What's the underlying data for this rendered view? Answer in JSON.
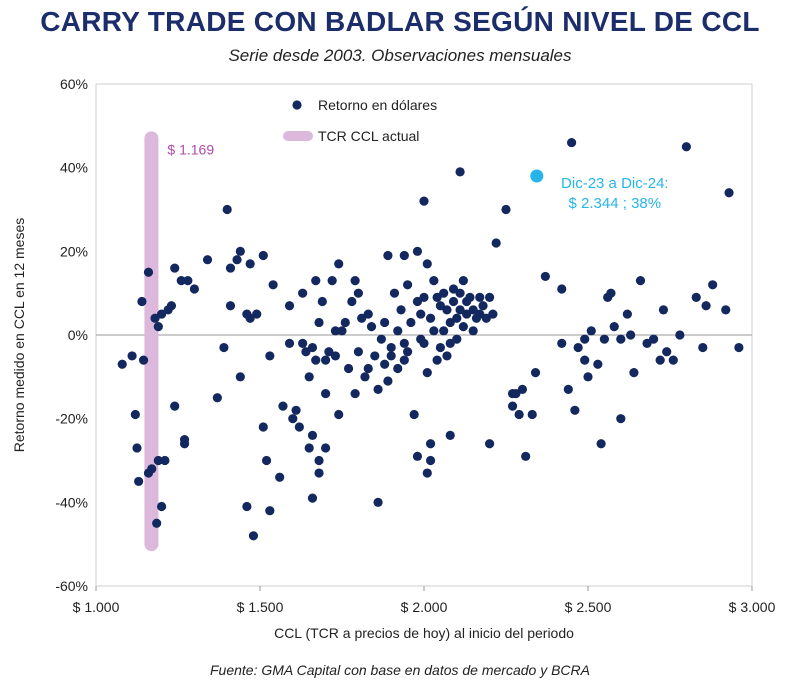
{
  "title": "CARRY TRADE CON BADLAR SEGÚN NIVEL DE CCL",
  "subtitle": "Serie desde 2003. Observaciones mensuales",
  "source": "Fuente: GMA Capital con base en datos de mercado y BCRA",
  "colors": {
    "points": "#13285e",
    "highlight": "#26b5ea",
    "band": "#dcb8dc",
    "band_label": "#b04aa8",
    "title": "#1c2d6b"
  },
  "chart_data": {
    "type": "scatter",
    "xlabel": "CCL (TCR a precios de hoy) al inicio del periodo",
    "ylabel": "Retorno medido en CCL en 12 meses",
    "xlim": [
      1000,
      3000
    ],
    "ylim": [
      -60,
      60
    ],
    "x_ticks": [
      {
        "value": 1000,
        "label": "$ 1.000"
      },
      {
        "value": 1500,
        "label": "$ 1.500"
      },
      {
        "value": 2000,
        "label": "$ 2.000"
      },
      {
        "value": 2500,
        "label": "$ 2.500"
      },
      {
        "value": 3000,
        "label": "$ 3.000"
      }
    ],
    "y_ticks": [
      {
        "value": 60,
        "label": "60%"
      },
      {
        "value": 40,
        "label": "40%"
      },
      {
        "value": 20,
        "label": "20%"
      },
      {
        "value": 0,
        "label": "0%"
      },
      {
        "value": -20,
        "label": "-20%"
      },
      {
        "value": -40,
        "label": "-40%"
      },
      {
        "value": -60,
        "label": "-60%"
      }
    ],
    "legend": [
      {
        "label": "Retorno en dólares",
        "kind": "point"
      },
      {
        "label": "TCR CCL actual",
        "kind": "band"
      }
    ],
    "current_ccl": {
      "value": 1169,
      "label": "$ 1.169",
      "y_range": [
        -50,
        47
      ]
    },
    "highlight": {
      "x": 2344,
      "y": 38,
      "label_line1": "Dic-23 a Dic-24:",
      "label_line2": "$ 2.344 ; 38%"
    },
    "series": [
      {
        "name": "Retorno en dólares",
        "points": [
          [
            1080,
            -7
          ],
          [
            1110,
            -5
          ],
          [
            1120,
            -19
          ],
          [
            1125,
            -27
          ],
          [
            1130,
            -35
          ],
          [
            1140,
            8
          ],
          [
            1145,
            -6
          ],
          [
            1160,
            15
          ],
          [
            1160,
            -33
          ],
          [
            1170,
            -32
          ],
          [
            1180,
            4
          ],
          [
            1185,
            -45
          ],
          [
            1190,
            2
          ],
          [
            1190,
            -30
          ],
          [
            1200,
            5
          ],
          [
            1200,
            -41
          ],
          [
            1210,
            -30
          ],
          [
            1220,
            6
          ],
          [
            1230,
            7
          ],
          [
            1240,
            16
          ],
          [
            1240,
            -17
          ],
          [
            1260,
            13
          ],
          [
            1270,
            -25
          ],
          [
            1270,
            -26
          ],
          [
            1280,
            13
          ],
          [
            1300,
            11
          ],
          [
            1340,
            18
          ],
          [
            1370,
            -15
          ],
          [
            1390,
            -3
          ],
          [
            1400,
            30
          ],
          [
            1410,
            16
          ],
          [
            1410,
            7
          ],
          [
            1430,
            18
          ],
          [
            1440,
            -10
          ],
          [
            1440,
            20
          ],
          [
            1460,
            5
          ],
          [
            1460,
            -41
          ],
          [
            1470,
            4
          ],
          [
            1470,
            17
          ],
          [
            1480,
            -48
          ],
          [
            1490,
            5
          ],
          [
            1510,
            19
          ],
          [
            1510,
            -22
          ],
          [
            1520,
            -30
          ],
          [
            1530,
            -5
          ],
          [
            1530,
            -42
          ],
          [
            1540,
            12
          ],
          [
            1560,
            -34
          ],
          [
            1570,
            -17
          ],
          [
            1590,
            -2
          ],
          [
            1590,
            7
          ],
          [
            1600,
            -20
          ],
          [
            1610,
            -18
          ],
          [
            1620,
            -22
          ],
          [
            1630,
            10
          ],
          [
            1630,
            -2
          ],
          [
            1640,
            -4
          ],
          [
            1650,
            -27
          ],
          [
            1650,
            -10
          ],
          [
            1660,
            -3
          ],
          [
            1660,
            -39
          ],
          [
            1660,
            -24
          ],
          [
            1670,
            13
          ],
          [
            1670,
            -6
          ],
          [
            1680,
            3
          ],
          [
            1680,
            -30
          ],
          [
            1680,
            -33
          ],
          [
            1690,
            8
          ],
          [
            1700,
            -6
          ],
          [
            1700,
            -14
          ],
          [
            1700,
            -27
          ],
          [
            1710,
            -4
          ],
          [
            1720,
            13
          ],
          [
            1730,
            -5
          ],
          [
            1730,
            1
          ],
          [
            1740,
            17
          ],
          [
            1740,
            -19
          ],
          [
            1750,
            1
          ],
          [
            1760,
            3
          ],
          [
            1770,
            -8
          ],
          [
            1780,
            8
          ],
          [
            1790,
            13
          ],
          [
            1790,
            -14
          ],
          [
            1800,
            10
          ],
          [
            1800,
            -4
          ],
          [
            1810,
            4
          ],
          [
            1820,
            -10
          ],
          [
            1830,
            -8
          ],
          [
            1830,
            5
          ],
          [
            1840,
            2
          ],
          [
            1850,
            -5
          ],
          [
            1860,
            -13
          ],
          [
            1860,
            -40
          ],
          [
            1870,
            -1
          ],
          [
            1880,
            -7
          ],
          [
            1880,
            3
          ],
          [
            1890,
            -11
          ],
          [
            1890,
            19
          ],
          [
            1900,
            -5
          ],
          [
            1900,
            -3
          ],
          [
            1910,
            10
          ],
          [
            1920,
            1
          ],
          [
            1920,
            -8
          ],
          [
            1930,
            6
          ],
          [
            1940,
            19
          ],
          [
            1940,
            -2
          ],
          [
            1940,
            -6
          ],
          [
            1950,
            12
          ],
          [
            1950,
            -4
          ],
          [
            1960,
            3
          ],
          [
            1970,
            -19
          ],
          [
            1980,
            -29
          ],
          [
            1980,
            20
          ],
          [
            1980,
            8
          ],
          [
            1990,
            5
          ],
          [
            1990,
            -1
          ],
          [
            2000,
            32
          ],
          [
            2000,
            -2
          ],
          [
            2000,
            9
          ],
          [
            2010,
            17
          ],
          [
            2010,
            -9
          ],
          [
            2010,
            -33
          ],
          [
            2020,
            4
          ],
          [
            2020,
            -26
          ],
          [
            2020,
            -30
          ],
          [
            2030,
            1
          ],
          [
            2030,
            13
          ],
          [
            2040,
            9
          ],
          [
            2040,
            -6
          ],
          [
            2050,
            7
          ],
          [
            2050,
            -3
          ],
          [
            2060,
            1
          ],
          [
            2060,
            10
          ],
          [
            2070,
            6
          ],
          [
            2070,
            -5
          ],
          [
            2080,
            3
          ],
          [
            2080,
            -2
          ],
          [
            2080,
            -24
          ],
          [
            2090,
            8
          ],
          [
            2090,
            11
          ],
          [
            2100,
            4
          ],
          [
            2100,
            -1
          ],
          [
            2110,
            39
          ],
          [
            2110,
            6
          ],
          [
            2110,
            10
          ],
          [
            2120,
            13
          ],
          [
            2120,
            2
          ],
          [
            2130,
            8
          ],
          [
            2130,
            5
          ],
          [
            2140,
            9
          ],
          [
            2150,
            6
          ],
          [
            2150,
            1
          ],
          [
            2160,
            4
          ],
          [
            2170,
            9
          ],
          [
            2170,
            5
          ],
          [
            2180,
            7
          ],
          [
            2190,
            4
          ],
          [
            2200,
            -26
          ],
          [
            2200,
            9
          ],
          [
            2210,
            5
          ],
          [
            2220,
            22
          ],
          [
            2250,
            30
          ],
          [
            2270,
            -14
          ],
          [
            2270,
            -17
          ],
          [
            2280,
            -14
          ],
          [
            2290,
            -19
          ],
          [
            2300,
            -13
          ],
          [
            2310,
            -29
          ],
          [
            2330,
            -19
          ],
          [
            2340,
            -9
          ],
          [
            2370,
            14
          ],
          [
            2420,
            11
          ],
          [
            2420,
            -2
          ],
          [
            2440,
            -13
          ],
          [
            2450,
            46
          ],
          [
            2460,
            -18
          ],
          [
            2470,
            -3
          ],
          [
            2490,
            -6
          ],
          [
            2490,
            -1
          ],
          [
            2500,
            -10
          ],
          [
            2510,
            1
          ],
          [
            2530,
            -7
          ],
          [
            2540,
            -26
          ],
          [
            2550,
            -1
          ],
          [
            2560,
            9
          ],
          [
            2570,
            10
          ],
          [
            2580,
            2
          ],
          [
            2600,
            -20
          ],
          [
            2600,
            -1
          ],
          [
            2620,
            5
          ],
          [
            2630,
            0
          ],
          [
            2640,
            -9
          ],
          [
            2660,
            13
          ],
          [
            2680,
            -2
          ],
          [
            2700,
            -1
          ],
          [
            2720,
            -6
          ],
          [
            2730,
            6
          ],
          [
            2740,
            -4
          ],
          [
            2760,
            -6
          ],
          [
            2780,
            0
          ],
          [
            2800,
            45
          ],
          [
            2830,
            9
          ],
          [
            2850,
            -3
          ],
          [
            2860,
            7
          ],
          [
            2880,
            12
          ],
          [
            2920,
            6
          ],
          [
            2930,
            34
          ],
          [
            2960,
            -3
          ]
        ]
      }
    ]
  }
}
